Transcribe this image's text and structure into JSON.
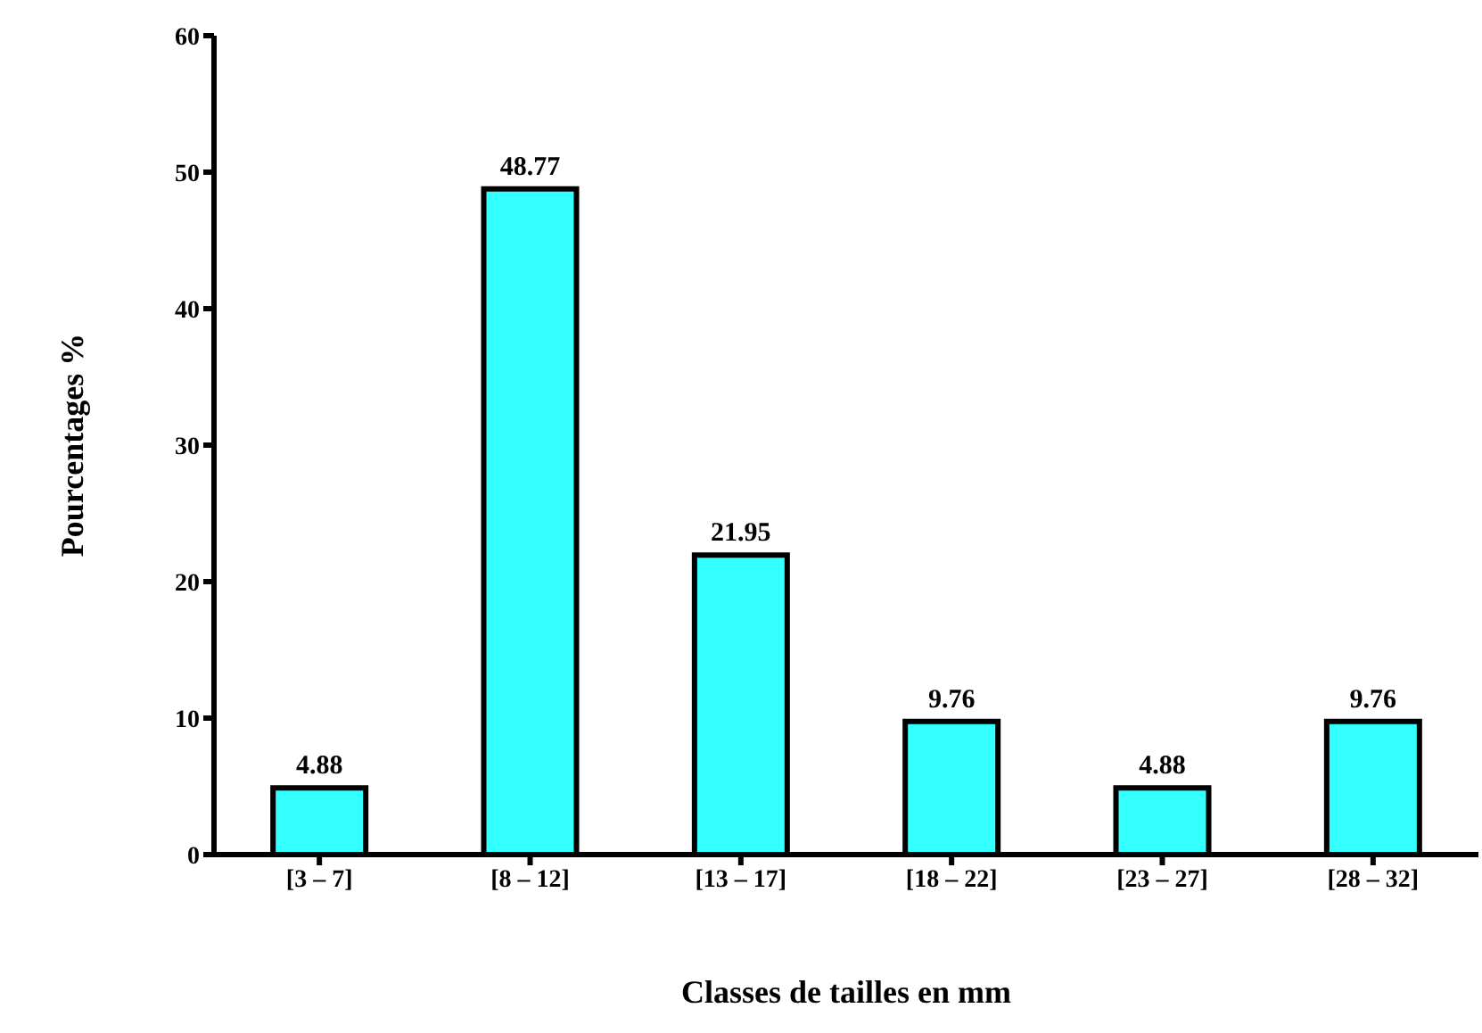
{
  "chart_data": {
    "type": "bar",
    "xlabel": "Classes de tailles en mm",
    "ylabel": "Pourcentages %",
    "categories": [
      "[3 – 7]",
      "[8 – 12]",
      "[13 – 17]",
      "[18 – 22]",
      "[23 – 27]",
      "[28 – 32]"
    ],
    "values": [
      4.88,
      48.77,
      21.95,
      9.76,
      4.88,
      9.76
    ],
    "color": "#33ffff",
    "ylim": [
      0,
      60
    ],
    "yticks": [
      0,
      10,
      20,
      30,
      40,
      50,
      60
    ],
    "grid": false,
    "data_labels": true
  }
}
